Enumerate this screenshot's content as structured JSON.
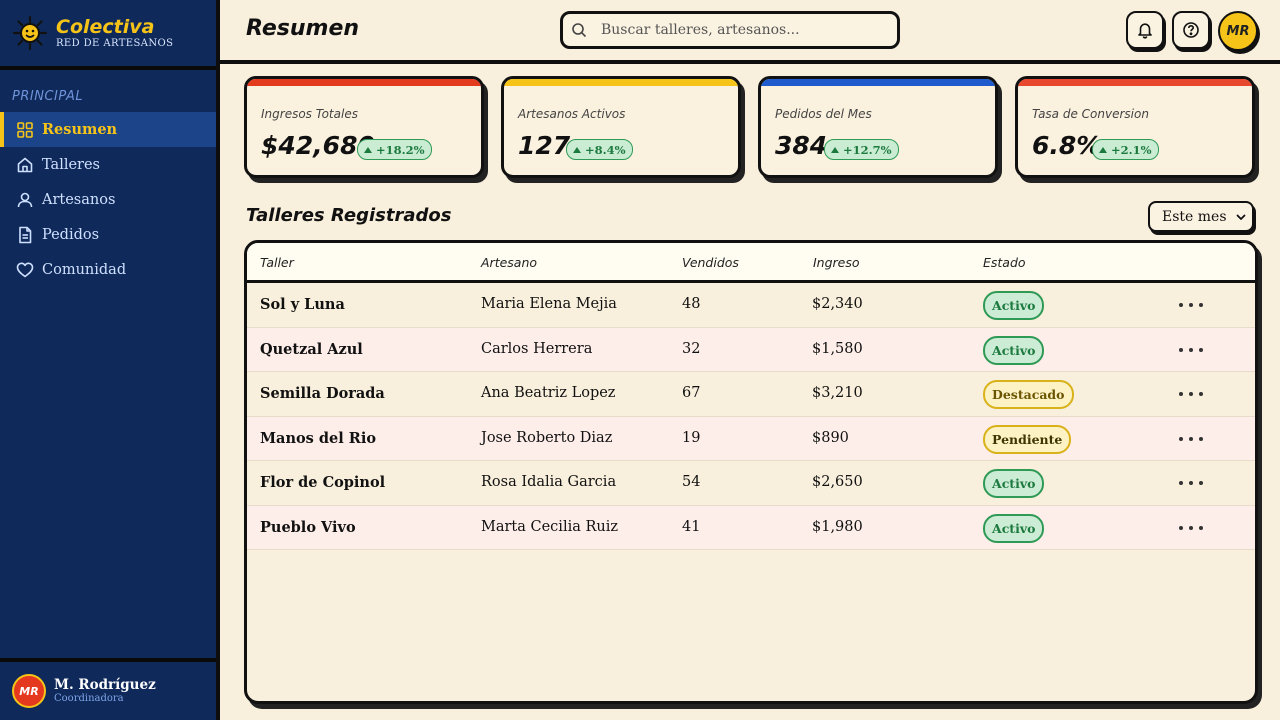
{
  "brand": {
    "title": "Colectiva",
    "subtitle": "RED DE ARTESANOS"
  },
  "sidebar": {
    "section_label": "PRINCIPAL",
    "items": [
      {
        "label": "Resumen",
        "icon": "grid-icon",
        "active": true
      },
      {
        "label": "Talleres",
        "icon": "home-icon",
        "active": false
      },
      {
        "label": "Artesanos",
        "icon": "user-icon",
        "active": false
      },
      {
        "label": "Pedidos",
        "icon": "document-icon",
        "active": false
      },
      {
        "label": "Comunidad",
        "icon": "heart-icon",
        "active": false
      }
    ],
    "user": {
      "initials": "MR",
      "name": "M. Rodríguez",
      "role": "Coordinadora"
    }
  },
  "header": {
    "title": "Resumen",
    "search_placeholder": "Buscar talleres, artesanos...",
    "avatar_initials": "MR"
  },
  "kpis": [
    {
      "label": "Ingresos Totales",
      "value": "$42,680",
      "delta": "+18.2%",
      "color": "#e23b1e"
    },
    {
      "label": "Artesanos Activos",
      "value": "127",
      "delta": "+8.4%",
      "color": "#f6c419"
    },
    {
      "label": "Pedidos del Mes",
      "value": "384",
      "delta": "+12.7%",
      "color": "#1f5bcc"
    },
    {
      "label": "Tasa de Conversion",
      "value": "6.8%",
      "delta": "+2.1%",
      "color": "#e8482e"
    }
  ],
  "workshops": {
    "title": "Talleres Registrados",
    "period": "Este mes",
    "columns": [
      "Taller",
      "Artesano",
      "Vendidos",
      "Ingreso",
      "Estado"
    ],
    "rows": [
      {
        "taller": "Sol y Luna",
        "artesano": "Maria Elena Mejia",
        "vendidos": "48",
        "ingreso": "$2,340",
        "estado": "Activo",
        "kind": "activo"
      },
      {
        "taller": "Quetzal Azul",
        "artesano": "Carlos Herrera",
        "vendidos": "32",
        "ingreso": "$1,580",
        "estado": "Activo",
        "kind": "activo"
      },
      {
        "taller": "Semilla Dorada",
        "artesano": "Ana Beatriz Lopez",
        "vendidos": "67",
        "ingreso": "$3,210",
        "estado": "Destacado",
        "kind": "destacado"
      },
      {
        "taller": "Manos del Rio",
        "artesano": "Jose Roberto Diaz",
        "vendidos": "19",
        "ingreso": "$890",
        "estado": "Pendiente",
        "kind": "pendiente"
      },
      {
        "taller": "Flor de Copinol",
        "artesano": "Rosa Idalia Garcia",
        "vendidos": "54",
        "ingreso": "$2,650",
        "estado": "Activo",
        "kind": "activo"
      },
      {
        "taller": "Pueblo Vivo",
        "artesano": "Marta Cecilia Ruiz",
        "vendidos": "41",
        "ingreso": "$1,980",
        "estado": "Activo",
        "kind": "activo"
      }
    ]
  }
}
